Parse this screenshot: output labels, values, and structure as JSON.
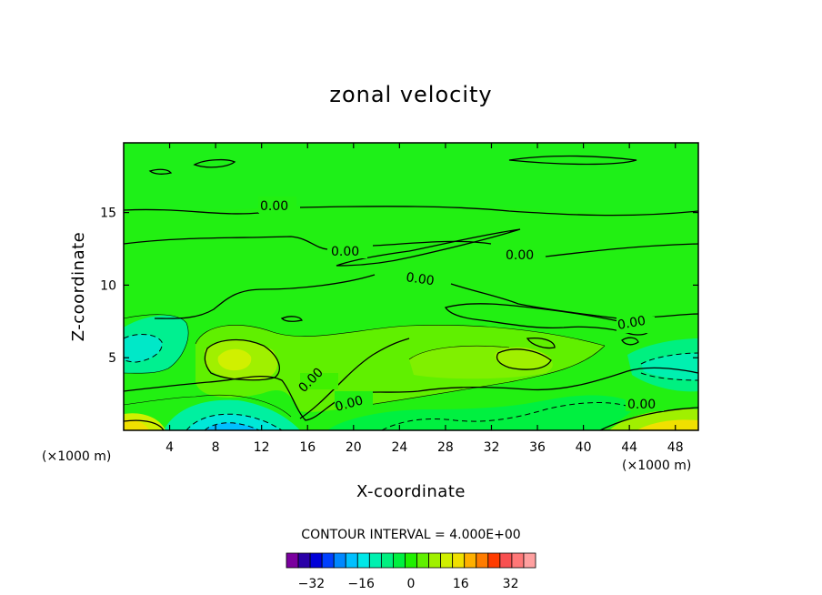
{
  "chart_data": {
    "type": "heatmap",
    "title": "zonal velocity",
    "xlabel": "X-coordinate",
    "ylabel": "Z-coordinate",
    "x_unit": "(×1000 m)",
    "z_unit": "(×1000 m)",
    "xlim": [
      0,
      50
    ],
    "ylim": [
      0,
      19.8
    ],
    "x_ticks": [
      4,
      8,
      12,
      16,
      20,
      24,
      28,
      32,
      36,
      40,
      44,
      48
    ],
    "y_ticks": [
      5,
      10,
      15
    ],
    "contour_interval_text": "CONTOUR INTERVAL = 4.000E+00",
    "contour_labels": [
      "0.00",
      "0.00",
      "0.00",
      "0.00",
      "0.00",
      "0.00",
      "0.00",
      "0.00"
    ],
    "colorbar": {
      "tick_labels": [
        "−32",
        "−16",
        "0",
        "16",
        "32"
      ],
      "tick_values": [
        -32,
        -16,
        0,
        16,
        32
      ],
      "range": [
        -40,
        40
      ],
      "colors": [
        "#7a009e",
        "#2a00a8",
        "#0000d8",
        "#0040ff",
        "#0088ff",
        "#00c0ff",
        "#00e8e8",
        "#00f0b0",
        "#00f080",
        "#00f040",
        "#20f000",
        "#60f000",
        "#a0f000",
        "#d0f000",
        "#f0e000",
        "#ffb000",
        "#ff7c00",
        "#ff3c00",
        "#f85050",
        "#ff7878",
        "#ffa0a0"
      ]
    }
  }
}
